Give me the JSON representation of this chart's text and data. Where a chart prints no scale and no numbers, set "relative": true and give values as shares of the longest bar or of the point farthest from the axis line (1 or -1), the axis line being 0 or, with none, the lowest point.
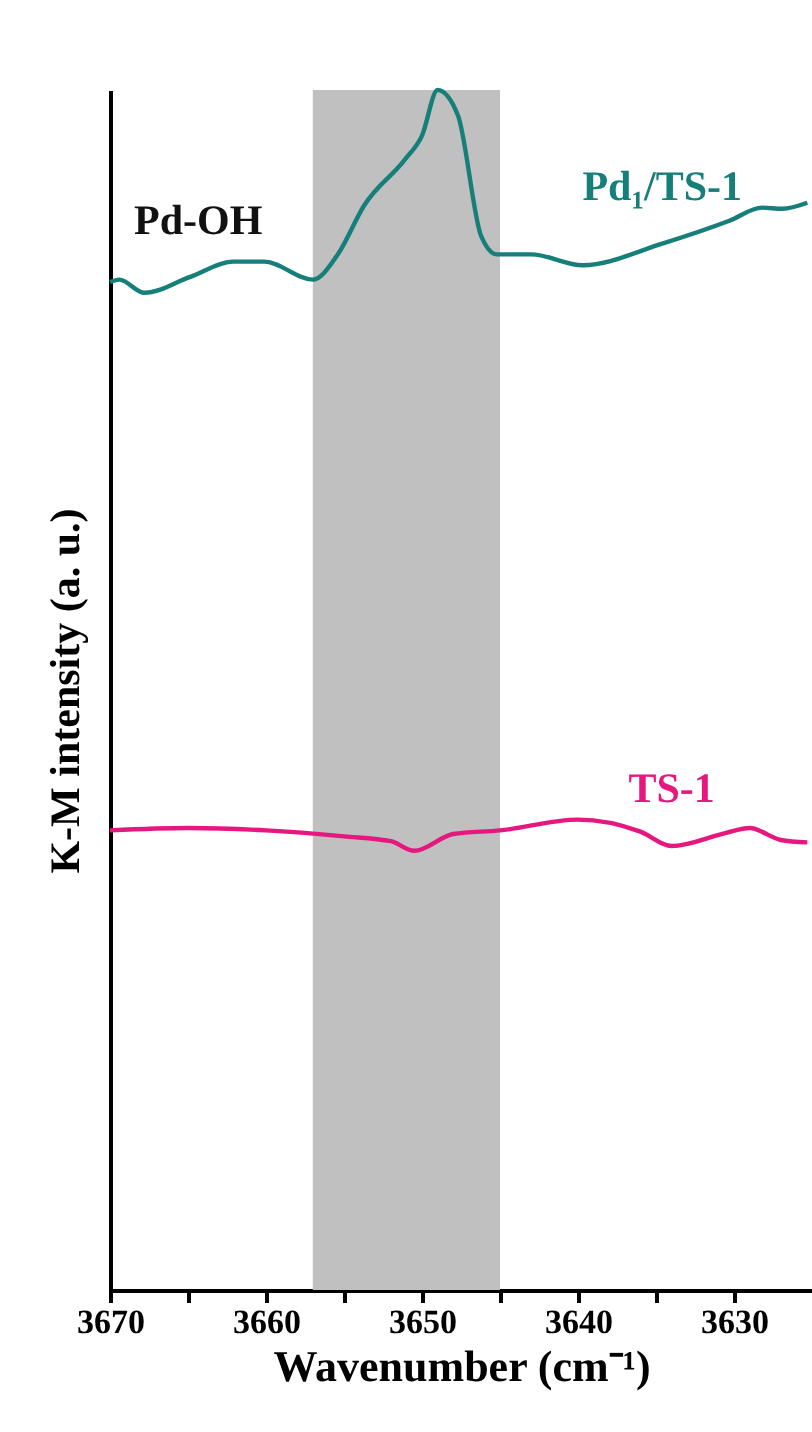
{
  "chart_data": {
    "type": "line",
    "relative": true,
    "xlabel": "Wavenumber (cm⁻¹)",
    "ylabel": "K-M intensity (a. u.)",
    "xlim": [
      3670,
      3625
    ],
    "xticks": [
      3670,
      {
        "value": 3665,
        "label": null
      },
      3660,
      {
        "value": 3655,
        "label": null
      },
      3650,
      {
        "value": 3645,
        "label": null
      },
      3640,
      {
        "value": 3635,
        "label": null
      },
      3630
    ],
    "annotations": [
      "Pd-OH"
    ],
    "bands": [
      {
        "axis": "x",
        "from": 3657,
        "to": 3645,
        "color": "#c0c0c0"
      }
    ],
    "series": [
      {
        "name": "Pd₁/TS-1",
        "color": "#167f7a",
        "x": [
          3670,
          3669.4,
          3667.8,
          3664.9,
          3662.1,
          3660.1,
          3657,
          3655.4,
          3653.7,
          3651.1,
          3650,
          3649,
          3647.7,
          3646.2,
          3645.2,
          3643,
          3639.7,
          3634.6,
          3630.3,
          3628.2,
          3626.9,
          3625.3
        ],
        "values": [
          0.84,
          0.842,
          0.831,
          0.844,
          0.857,
          0.857,
          0.842,
          0.863,
          0.904,
          0.942,
          0.962,
          1,
          0.979,
          0.878,
          0.863,
          0.863,
          0.854,
          0.872,
          0.891,
          0.902,
          0.901,
          0.906
        ]
      },
      {
        "name": "TS-1",
        "color": "#e6177f",
        "x": [
          3670,
          3665,
          3660,
          3655,
          3652,
          3650.5,
          3648,
          3645,
          3640,
          3636,
          3634,
          3630.5,
          3629,
          3627,
          3625.3
        ],
        "values": [
          0.383,
          0.385,
          0.383,
          0.378,
          0.374,
          0.366,
          0.38,
          0.383,
          0.392,
          0.382,
          0.37,
          0.381,
          0.385,
          0.375,
          0.373
        ]
      }
    ]
  }
}
